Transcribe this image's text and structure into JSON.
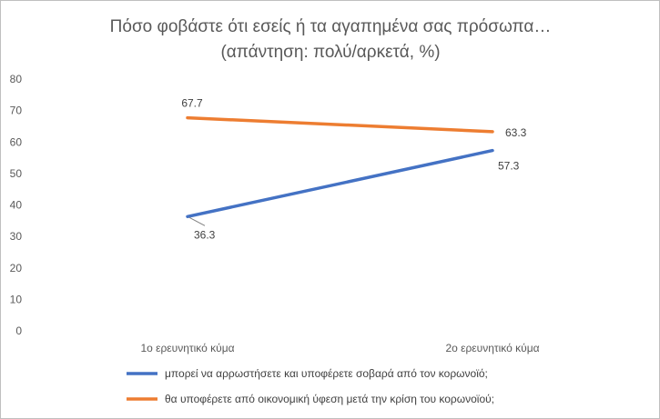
{
  "chart_data": {
    "type": "line",
    "title": [
      "Πόσο φοβάστε ότι εσείς ή τα αγαπημένα σας πρόσωπα…",
      "(απάντηση: πολύ/αρκετά, %)"
    ],
    "xlabel": "",
    "ylabel": "",
    "categories": [
      "1ο ερευνητικό κύμα",
      "2ο ερευνητικό κύμα"
    ],
    "ylim": [
      0,
      80
    ],
    "yticks": [
      "0",
      "10",
      "20",
      "30",
      "40",
      "50",
      "60",
      "70",
      "80"
    ],
    "grid": false,
    "legend_position": "bottom",
    "series": [
      {
        "name": "μπορεί να αρρωστήσετε και υποφέρετε σοβαρά από τον κορωνοϊό;",
        "values": [
          36.3,
          57.3
        ],
        "labels": [
          "36.3",
          "57.3"
        ],
        "color": "#4472c4"
      },
      {
        "name": "θα υποφέρετε από οικονομική ύφεση μετά την κρίση του κορωνοϊού;",
        "values": [
          67.7,
          63.3
        ],
        "labels": [
          "67.7",
          "63.3"
        ],
        "color": "#ed7d31"
      }
    ]
  }
}
